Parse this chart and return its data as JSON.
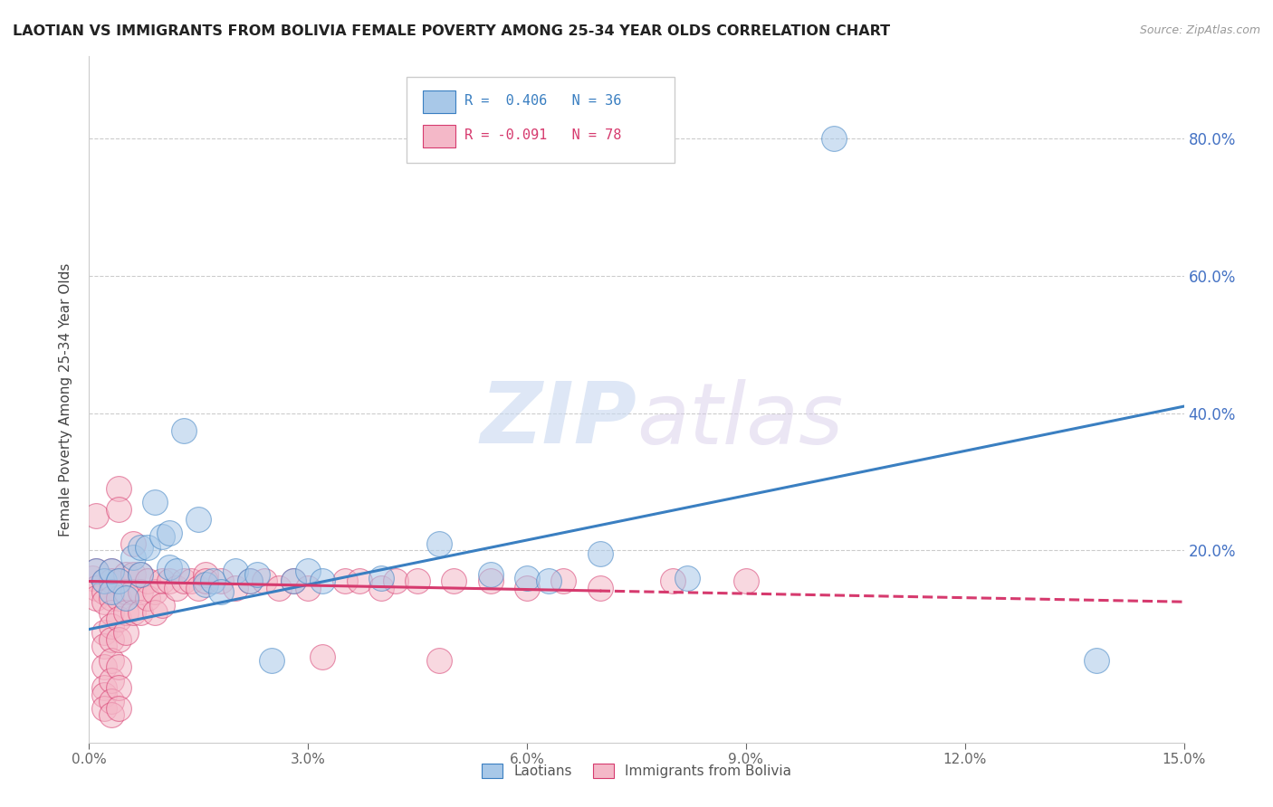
{
  "title": "LAOTIAN VS IMMIGRANTS FROM BOLIVIA FEMALE POVERTY AMONG 25-34 YEAR OLDS CORRELATION CHART",
  "source": "Source: ZipAtlas.com",
  "ylabel": "Female Poverty Among 25-34 Year Olds",
  "yaxis_labels": [
    "80.0%",
    "60.0%",
    "40.0%",
    "20.0%"
  ],
  "yaxis_values": [
    0.8,
    0.6,
    0.4,
    0.2
  ],
  "xlim": [
    0.0,
    0.15
  ],
  "ylim": [
    -0.08,
    0.92
  ],
  "legend_blue_r": "R =  0.406",
  "legend_blue_n": "N = 36",
  "legend_pink_r": "R = -0.091",
  "legend_pink_n": "N = 78",
  "legend_label_blue": "Laotians",
  "legend_label_pink": "Immigrants from Bolivia",
  "watermark_zip": "ZIP",
  "watermark_atlas": "atlas",
  "blue_color": "#a8c8e8",
  "pink_color": "#f4b8c8",
  "blue_line_color": "#3a7fc1",
  "pink_line_color": "#d63a6e",
  "blue_scatter": [
    [
      0.001,
      0.17
    ],
    [
      0.002,
      0.155
    ],
    [
      0.003,
      0.14
    ],
    [
      0.003,
      0.17
    ],
    [
      0.004,
      0.155
    ],
    [
      0.005,
      0.13
    ],
    [
      0.006,
      0.19
    ],
    [
      0.007,
      0.165
    ],
    [
      0.007,
      0.205
    ],
    [
      0.008,
      0.205
    ],
    [
      0.009,
      0.27
    ],
    [
      0.01,
      0.22
    ],
    [
      0.011,
      0.175
    ],
    [
      0.011,
      0.225
    ],
    [
      0.012,
      0.17
    ],
    [
      0.013,
      0.375
    ],
    [
      0.015,
      0.245
    ],
    [
      0.016,
      0.15
    ],
    [
      0.017,
      0.155
    ],
    [
      0.018,
      0.14
    ],
    [
      0.02,
      0.17
    ],
    [
      0.022,
      0.155
    ],
    [
      0.023,
      0.165
    ],
    [
      0.025,
      0.04
    ],
    [
      0.028,
      0.155
    ],
    [
      0.03,
      0.17
    ],
    [
      0.032,
      0.155
    ],
    [
      0.04,
      0.16
    ],
    [
      0.048,
      0.21
    ],
    [
      0.055,
      0.165
    ],
    [
      0.06,
      0.16
    ],
    [
      0.063,
      0.155
    ],
    [
      0.07,
      0.195
    ],
    [
      0.082,
      0.16
    ],
    [
      0.102,
      0.8
    ],
    [
      0.138,
      0.04
    ]
  ],
  "pink_scatter": [
    [
      0.0005,
      0.16
    ],
    [
      0.001,
      0.17
    ],
    [
      0.001,
      0.145
    ],
    [
      0.001,
      0.13
    ],
    [
      0.001,
      0.25
    ],
    [
      0.002,
      0.155
    ],
    [
      0.002,
      0.14
    ],
    [
      0.002,
      0.125
    ],
    [
      0.002,
      0.08
    ],
    [
      0.002,
      0.06
    ],
    [
      0.002,
      0.03
    ],
    [
      0.002,
      0.0
    ],
    [
      0.002,
      -0.01
    ],
    [
      0.002,
      -0.03
    ],
    [
      0.003,
      0.17
    ],
    [
      0.003,
      0.155
    ],
    [
      0.003,
      0.13
    ],
    [
      0.003,
      0.11
    ],
    [
      0.003,
      0.09
    ],
    [
      0.003,
      0.07
    ],
    [
      0.003,
      0.04
    ],
    [
      0.003,
      0.01
    ],
    [
      0.003,
      -0.02
    ],
    [
      0.003,
      -0.04
    ],
    [
      0.004,
      0.29
    ],
    [
      0.004,
      0.26
    ],
    [
      0.004,
      0.155
    ],
    [
      0.004,
      0.13
    ],
    [
      0.004,
      0.1
    ],
    [
      0.004,
      0.07
    ],
    [
      0.004,
      0.03
    ],
    [
      0.004,
      0.0
    ],
    [
      0.004,
      -0.03
    ],
    [
      0.005,
      0.165
    ],
    [
      0.005,
      0.14
    ],
    [
      0.005,
      0.11
    ],
    [
      0.005,
      0.08
    ],
    [
      0.006,
      0.21
    ],
    [
      0.006,
      0.165
    ],
    [
      0.006,
      0.14
    ],
    [
      0.006,
      0.11
    ],
    [
      0.007,
      0.165
    ],
    [
      0.007,
      0.14
    ],
    [
      0.007,
      0.11
    ],
    [
      0.008,
      0.155
    ],
    [
      0.008,
      0.13
    ],
    [
      0.009,
      0.14
    ],
    [
      0.009,
      0.11
    ],
    [
      0.01,
      0.155
    ],
    [
      0.01,
      0.12
    ],
    [
      0.011,
      0.155
    ],
    [
      0.012,
      0.145
    ],
    [
      0.013,
      0.155
    ],
    [
      0.014,
      0.155
    ],
    [
      0.015,
      0.145
    ],
    [
      0.016,
      0.165
    ],
    [
      0.016,
      0.155
    ],
    [
      0.018,
      0.155
    ],
    [
      0.02,
      0.145
    ],
    [
      0.022,
      0.155
    ],
    [
      0.024,
      0.155
    ],
    [
      0.026,
      0.145
    ],
    [
      0.028,
      0.155
    ],
    [
      0.03,
      0.145
    ],
    [
      0.032,
      0.045
    ],
    [
      0.035,
      0.155
    ],
    [
      0.037,
      0.155
    ],
    [
      0.04,
      0.145
    ],
    [
      0.042,
      0.155
    ],
    [
      0.045,
      0.155
    ],
    [
      0.048,
      0.04
    ],
    [
      0.05,
      0.155
    ],
    [
      0.055,
      0.155
    ],
    [
      0.06,
      0.145
    ],
    [
      0.065,
      0.155
    ],
    [
      0.07,
      0.145
    ],
    [
      0.08,
      0.155
    ],
    [
      0.09,
      0.155
    ]
  ]
}
